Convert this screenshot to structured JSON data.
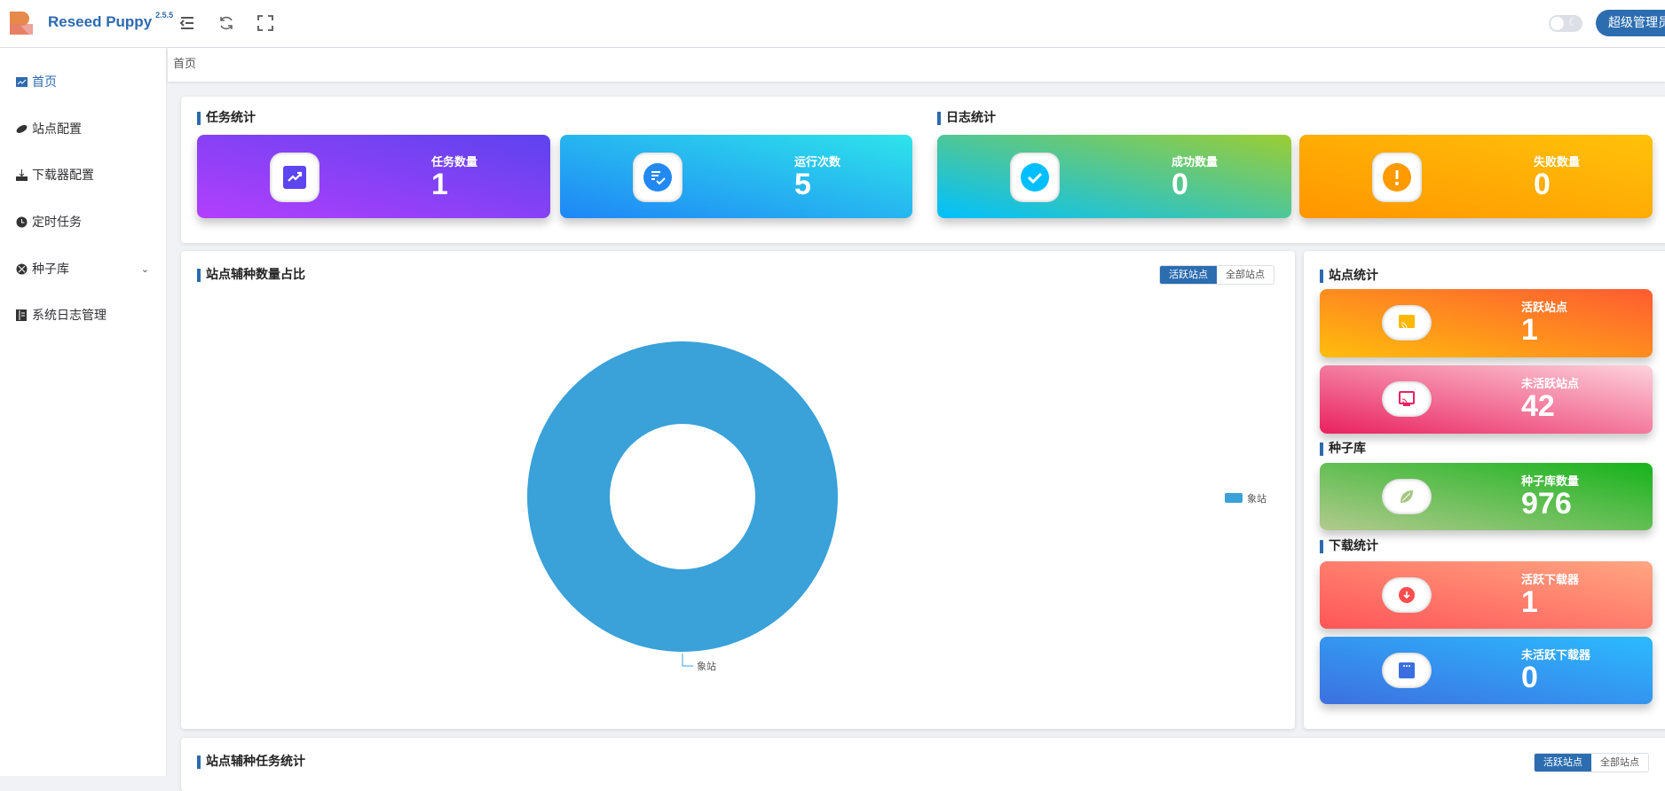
{
  "header": {
    "app_name": "Reseed Puppy",
    "version": "2.5.5",
    "user_button": "超级管理员",
    "icons": [
      "menu-fold-icon",
      "refresh-icon",
      "fullscreen-icon",
      "moon-icon"
    ]
  },
  "sidebar": {
    "items": [
      {
        "label": "首页",
        "icon": "chart-icon",
        "active": true
      },
      {
        "label": "站点配置",
        "icon": "planet-icon"
      },
      {
        "label": "下载器配置",
        "icon": "download-icon"
      },
      {
        "label": "定时任务",
        "icon": "clock-icon"
      },
      {
        "label": "种子库",
        "icon": "seed-icon",
        "expandable": true
      },
      {
        "label": "系统日志管理",
        "icon": "log-icon"
      }
    ]
  },
  "breadcrumb": "首页",
  "task_stats": {
    "title": "任务统计",
    "cards": [
      {
        "label": "任务数量",
        "value": "1"
      },
      {
        "label": "运行次数",
        "value": "5"
      }
    ]
  },
  "log_stats": {
    "title": "日志统计",
    "cards": [
      {
        "label": "成功数量",
        "value": "0"
      },
      {
        "label": "失败数量",
        "value": "0"
      }
    ]
  },
  "pie_panel": {
    "title": "站点辅种数量占比",
    "toggle": [
      "活跃站点",
      "全部站点"
    ],
    "active_toggle": 0
  },
  "chart_data": {
    "type": "pie",
    "donut": true,
    "categories": [
      "象站"
    ],
    "values": [
      1
    ],
    "legend": [
      "象站"
    ],
    "legend_position": "right",
    "colors": [
      "#3aa1d9"
    ]
  },
  "site_stats": {
    "title": "站点统计",
    "cards": [
      {
        "label": "活跃站点",
        "value": "1"
      },
      {
        "label": "未活跃站点",
        "value": "42"
      }
    ]
  },
  "seed_stats": {
    "title": "种子库",
    "cards": [
      {
        "label": "种子库数量",
        "value": "976"
      }
    ]
  },
  "download_stats": {
    "title": "下载统计",
    "cards": [
      {
        "label": "活跃下载器",
        "value": "1"
      },
      {
        "label": "未活跃下载器",
        "value": "0"
      }
    ]
  },
  "task_panel": {
    "title": "站点辅种任务统计",
    "toggle": [
      "活跃站点",
      "全部站点"
    ],
    "active_toggle": 0
  }
}
